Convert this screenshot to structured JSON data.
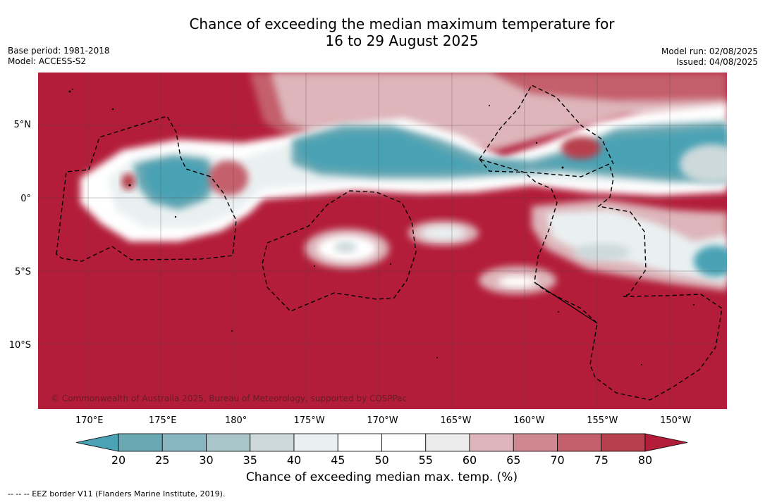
{
  "title_line1": "Chance of exceeding the median maximum temperature for",
  "title_line2": "16 to 29 August 2025",
  "meta_left": [
    "Base period: 1981-2018",
    "Model: ACCESS-S2"
  ],
  "meta_right": [
    "Model run: 02/08/2025",
    "Issued: 04/08/2025"
  ],
  "lat_ticks": [
    {
      "label": "5°N",
      "value": 5
    },
    {
      "label": "0°",
      "value": 0
    },
    {
      "label": "5°S",
      "value": -5
    },
    {
      "label": "10°S",
      "value": -10
    }
  ],
  "lon_ticks": [
    {
      "label": "170°E",
      "value": 170
    },
    {
      "label": "175°E",
      "value": 175
    },
    {
      "label": "180°",
      "value": 180
    },
    {
      "label": "175°W",
      "value": 185
    },
    {
      "label": "170°W",
      "value": 190
    },
    {
      "label": "165°W",
      "value": 195
    },
    {
      "label": "160°W",
      "value": 200
    },
    {
      "label": "155°W",
      "value": 205
    },
    {
      "label": "150°W",
      "value": 210
    }
  ],
  "extent": {
    "lon_min": 166.5,
    "lon_max": 213.5,
    "lat_min": -14.3,
    "lat_max": 8.6
  },
  "colorbar": {
    "levels": [
      "20",
      "25",
      "30",
      "35",
      "40",
      "45",
      "50",
      "55",
      "60",
      "65",
      "70",
      "75",
      "80"
    ],
    "colors": [
      "#6aa8b3",
      "#89b7c1",
      "#a9c5ca",
      "#cdd9db",
      "#eaf0f1",
      "#ffffff",
      "#ffffff",
      "#ececec",
      "#ddb5ba",
      "#d08890",
      "#c45f6c",
      "#b73f4e"
    ],
    "under_color": "#4aa2b4",
    "over_color": "#b31d3a",
    "title": "Chance of exceeding median max. temp. (%)"
  },
  "copyright": "© Commonwealth of Australia 2025, Bureau of Meteorology, supported by COSPPac",
  "eez_note": "--  --  -- EEZ border V11 (Flanders Marine Institute, 2019)."
}
